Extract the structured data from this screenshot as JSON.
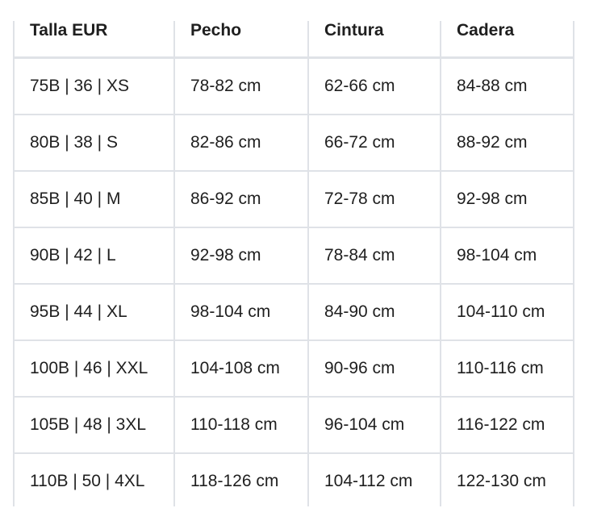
{
  "table": {
    "headers": [
      "Talla EUR",
      "Pecho",
      "Cintura",
      "Cadera"
    ],
    "rows": [
      [
        "75B | 36 | XS",
        "78-82 cm",
        "62-66 cm",
        "84-88 cm"
      ],
      [
        "80B | 38 | S",
        "82-86 cm",
        "66-72 cm",
        "88-92 cm"
      ],
      [
        "85B | 40 | M",
        "86-92 cm",
        "72-78 cm",
        "92-98 cm"
      ],
      [
        "90B | 42 | L",
        "92-98 cm",
        "78-84 cm",
        "98-104 cm"
      ],
      [
        "95B | 44 | XL",
        "98-104 cm",
        "84-90 cm",
        "104-110 cm"
      ],
      [
        "100B | 46 | XXL",
        "104-108 cm",
        "90-96 cm",
        "110-116 cm"
      ],
      [
        "105B | 48 | 3XL",
        "110-118 cm",
        "96-104 cm",
        "116-122 cm"
      ],
      [
        "110B | 50 | 4XL",
        "118-126 cm",
        "104-112 cm",
        "122-130 cm"
      ]
    ]
  }
}
